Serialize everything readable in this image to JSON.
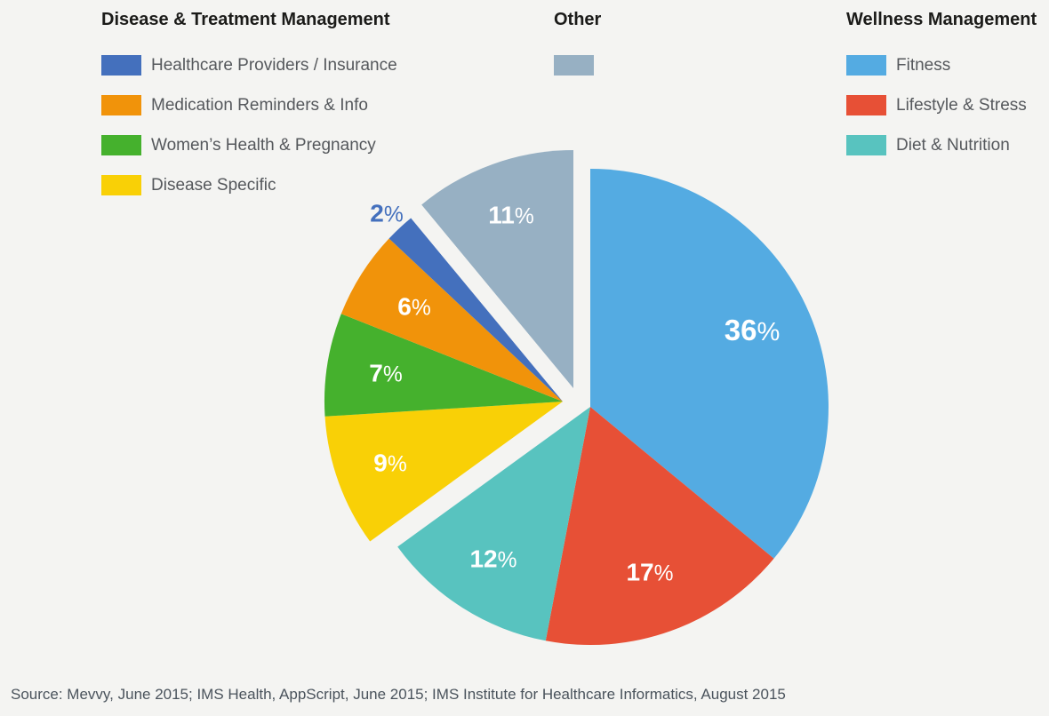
{
  "page": {
    "background": "#f4f4f2"
  },
  "legend": {
    "groups": [
      {
        "title": "Disease & Treatment Management",
        "items": [
          {
            "id": "healthcare-providers-insurance",
            "label": "Healthcare Providers / Insurance",
            "color": "#4470bd"
          },
          {
            "id": "medication-reminders-info",
            "label": "Medication Reminders & Info",
            "color": "#f1930a"
          },
          {
            "id": "womens-health-pregnancy",
            "label": "Women’s Health & Pregnancy",
            "color": "#45b12d"
          },
          {
            "id": "disease-specific",
            "label": "Disease Specific",
            "color": "#f9d006"
          }
        ]
      },
      {
        "title": "Other",
        "items": [
          {
            "id": "other",
            "label": "",
            "color": "#97b0c3"
          }
        ]
      },
      {
        "title": "Wellness Management",
        "items": [
          {
            "id": "fitness",
            "label": "Fitness",
            "color": "#54abe2"
          },
          {
            "id": "lifestyle-stress",
            "label": "Lifestyle & Stress",
            "color": "#e75036"
          },
          {
            "id": "diet-nutrition",
            "label": "Diet & Nutrition",
            "color": "#58c3bf"
          }
        ]
      }
    ]
  },
  "chart_data": {
    "type": "pie",
    "title": "",
    "unit": "%",
    "order": "clockwise-from-12-oclock",
    "center": [
      664,
      458
    ],
    "radius": 268,
    "legend_position": "top",
    "slices": [
      {
        "id": "fitness",
        "label": "Fitness",
        "group": "Wellness Management",
        "value": 36,
        "color": "#54abe2",
        "value_label": "36%",
        "label_color": "#ffffff",
        "label_r": 0.75,
        "label_size": 33,
        "offset": [
          0,
          0
        ]
      },
      {
        "id": "lifestyle-stress",
        "label": "Lifestyle & Stress",
        "group": "Wellness Management",
        "value": 17,
        "color": "#e75036",
        "value_label": "17%",
        "label_color": "#ffffff",
        "label_r": 0.74,
        "label_size": 28,
        "offset": [
          0,
          0
        ]
      },
      {
        "id": "diet-nutrition",
        "label": "Diet & Nutrition",
        "group": "Wellness Management",
        "value": 12,
        "color": "#58c3bf",
        "value_label": "12%",
        "label_color": "#ffffff",
        "label_r": 0.76,
        "label_size": 28,
        "offset": [
          0,
          0
        ]
      },
      {
        "id": "disease-specific",
        "label": "Disease Specific",
        "group": "Disease & Treatment Management",
        "value": 9,
        "color": "#f9d006",
        "value_label": "9%",
        "label_color": "#ffffff",
        "label_r": 0.77,
        "label_size": 28,
        "offset": [
          -31,
          -6
        ]
      },
      {
        "id": "womens-health-pregnancy",
        "label": "Women’s Health & Pregnancy",
        "group": "Disease & Treatment Management",
        "value": 7,
        "color": "#45b12d",
        "value_label": "7%",
        "label_color": "#ffffff",
        "label_r": 0.75,
        "label_size": 28,
        "offset": [
          -31,
          -6
        ]
      },
      {
        "id": "medication-reminders-info",
        "label": "Medication Reminders & Info",
        "group": "Disease & Treatment Management",
        "value": 6,
        "color": "#f1930a",
        "value_label": "6%",
        "label_color": "#ffffff",
        "label_r": 0.74,
        "label_size": 28,
        "offset": [
          -31,
          -6
        ]
      },
      {
        "id": "healthcare-providers-insurance",
        "label": "Healthcare Providers / Insurance",
        "group": "Disease & Treatment Management",
        "value": 2,
        "color": "#4470bd",
        "value_label": "2%",
        "label_color": "#4470bd",
        "label_r": 1.08,
        "label_size": 28,
        "offset": [
          -31,
          -6
        ]
      },
      {
        "id": "other",
        "label": "Other",
        "group": "Other",
        "value": 11,
        "color": "#97b0c3",
        "value_label": "11%",
        "label_color": "#ffffff",
        "label_r": 0.77,
        "label_size": 28,
        "offset": [
          -19,
          -21
        ]
      }
    ]
  },
  "source": "Source: Mevvy, June 2015; IMS Health, AppScript, June 2015; IMS Institute for Healthcare Informatics, August 2015"
}
